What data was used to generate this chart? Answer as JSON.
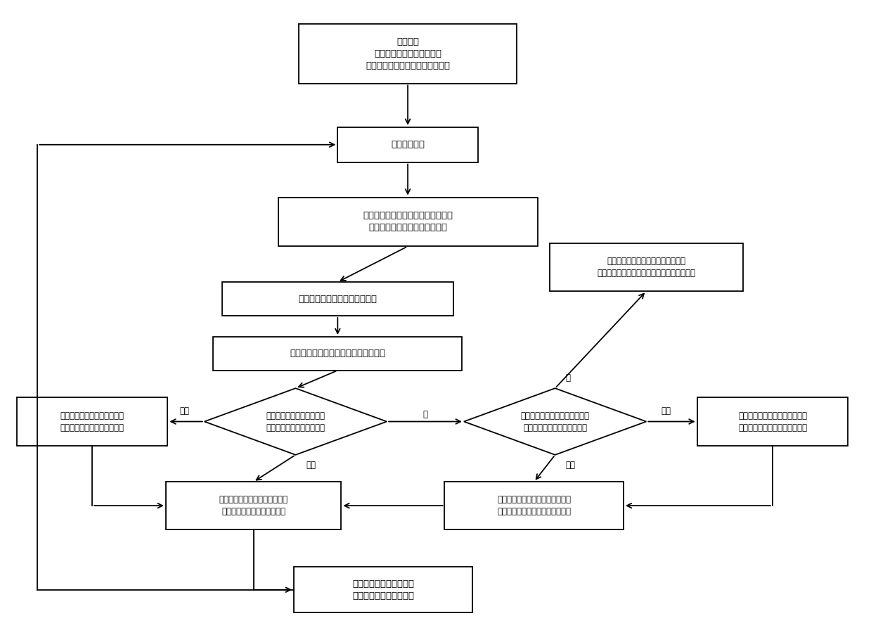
{
  "bg_color": "#ffffff",
  "fig_width": 12.39,
  "fig_height": 8.86,
  "font_size": 9,
  "start_text": "初始化；\n确定移动机器人当前位置；\n设置优化决策时间针到当前时刻；",
  "collect_text": "采集环境数据",
  "build_text": "建立环境障碍物区域位置点数据库和\n环境可通行区域位置点数据库；",
  "far_text": "确定到障碍物边界的最远位置点",
  "near_text": "确定到可通行区域的边界的最近位置点",
  "dleft_text": "判断此时机器人新探测的障\n碍物边界最远位置点的个数",
  "dright_text": "判断此时机器人新探索的可通行\n区域的边界最近位置点的个数",
  "end_text": "完成环境障碍物区域位置点数据库和\n环境可通行区域位置点数据库，结束建图任务",
  "lmulti_text": "利用探索优先度函数，确定唯\n一的障碍物边界的最远位置点",
  "rmulti_text": "利用探索优先度函数，确定唯一\n的可通行区域的边界最近位置点",
  "pleft_text": "确定的优化的路径为当前位置到\n障碍物边界最远位置点的路径",
  "pright_text": "确定的优化的路径为当前位置到可\n通行区域的边界最近位置点的路径",
  "final_text": "将优化决策时间针设置到\n到达新位置时的当前时刻",
  "label_duo": "多个",
  "label_kong": "空",
  "label_dan": "单个"
}
